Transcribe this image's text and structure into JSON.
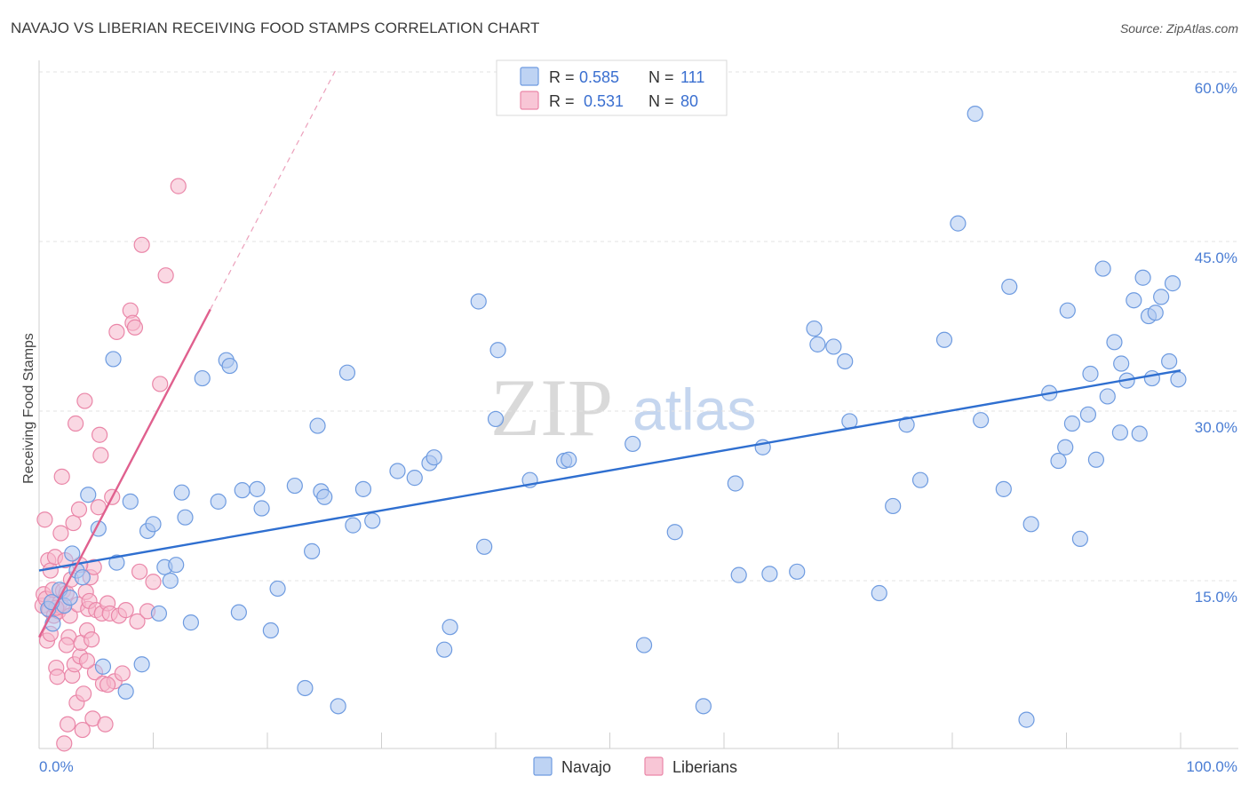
{
  "title": "NAVAJO VS LIBERIAN RECEIVING FOOD STAMPS CORRELATION CHART",
  "source": "Source: ZipAtlas.com",
  "watermark": {
    "zip": "ZIP",
    "atlas": "atlas"
  },
  "colors": {
    "navajo_fill": "#aec8f0",
    "navajo_stroke": "#6e9be0",
    "navajo_line": "#2f6fd0",
    "liberian_fill": "#f6b8cc",
    "liberian_stroke": "#ea86a8",
    "liberian_line": "#e0608e",
    "grid": "#e3e3e3",
    "tick_text": "#4a7dd4"
  },
  "legend": {
    "rows": [
      {
        "r_label": "R =",
        "r_value": "0.585",
        "n_label": "N =",
        "n_value": "111"
      },
      {
        "r_label": "R =",
        "r_value": "0.531",
        "n_label": "N =",
        "n_value": "80"
      }
    ]
  },
  "bottom_legend": [
    "Navajo",
    "Liberians"
  ],
  "chart_data": {
    "type": "scatter",
    "title": "NAVAJO VS LIBERIAN RECEIVING FOOD STAMPS CORRELATION CHART",
    "xlabel": "",
    "ylabel": "Receiving Food Stamps",
    "xlim": [
      0,
      100
    ],
    "ylim": [
      0,
      62
    ],
    "x_tick_labels": [
      {
        "value": 0,
        "label": "0.0%"
      },
      {
        "value": 100,
        "label": "100.0%"
      }
    ],
    "x_minor_ticks": [
      10,
      20,
      30,
      40,
      50,
      60,
      70,
      80,
      90,
      100
    ],
    "y_ticks": [
      {
        "value": 15,
        "label": "15.0%"
      },
      {
        "value": 30,
        "label": "30.0%"
      },
      {
        "value": 45,
        "label": "45.0%"
      },
      {
        "value": 60,
        "label": "60.0%"
      }
    ],
    "series": [
      {
        "name": "Navajo",
        "r": 0.585,
        "n": 111,
        "trend": {
          "x": [
            0,
            100
          ],
          "y": [
            15.9,
            33.6
          ],
          "dashed_extension": false
        },
        "points": [
          [
            0.8,
            12.5
          ],
          [
            1.2,
            11.2
          ],
          [
            1.8,
            14.2
          ],
          [
            2.2,
            12.8
          ],
          [
            2.7,
            13.5
          ],
          [
            2.9,
            17.4
          ],
          [
            3.3,
            15.9
          ],
          [
            3.8,
            15.3
          ],
          [
            4.3,
            22.6
          ],
          [
            5.2,
            19.6
          ],
          [
            5.6,
            7.4
          ],
          [
            6.5,
            34.6
          ],
          [
            6.8,
            16.6
          ],
          [
            7.6,
            5.2
          ],
          [
            8.0,
            22.0
          ],
          [
            9.0,
            7.6
          ],
          [
            9.5,
            19.4
          ],
          [
            10.0,
            20.0
          ],
          [
            10.5,
            12.1
          ],
          [
            11.0,
            16.2
          ],
          [
            11.5,
            15.0
          ],
          [
            12.0,
            16.4
          ],
          [
            12.5,
            22.8
          ],
          [
            12.8,
            20.6
          ],
          [
            13.3,
            11.3
          ],
          [
            14.3,
            32.9
          ],
          [
            15.7,
            22.0
          ],
          [
            16.4,
            34.5
          ],
          [
            16.7,
            34.0
          ],
          [
            17.5,
            12.2
          ],
          [
            17.8,
            23.0
          ],
          [
            19.1,
            23.1
          ],
          [
            19.5,
            21.4
          ],
          [
            20.3,
            10.6
          ],
          [
            20.9,
            14.3
          ],
          [
            22.4,
            23.4
          ],
          [
            23.3,
            5.5
          ],
          [
            23.9,
            17.6
          ],
          [
            24.4,
            28.7
          ],
          [
            24.7,
            22.9
          ],
          [
            25.0,
            22.4
          ],
          [
            26.2,
            3.9
          ],
          [
            27.0,
            33.4
          ],
          [
            27.5,
            19.9
          ],
          [
            28.4,
            23.1
          ],
          [
            29.2,
            20.3
          ],
          [
            31.4,
            24.7
          ],
          [
            32.9,
            24.1
          ],
          [
            34.2,
            25.4
          ],
          [
            34.6,
            25.9
          ],
          [
            35.5,
            8.9
          ],
          [
            36.0,
            10.9
          ],
          [
            38.5,
            39.7
          ],
          [
            39.0,
            18.0
          ],
          [
            40.0,
            29.3
          ],
          [
            40.2,
            35.4
          ],
          [
            43.0,
            23.9
          ],
          [
            46.0,
            25.6
          ],
          [
            46.4,
            25.7
          ],
          [
            52.0,
            27.1
          ],
          [
            53.0,
            9.3
          ],
          [
            55.7,
            19.3
          ],
          [
            58.2,
            3.9
          ],
          [
            61.0,
            23.6
          ],
          [
            61.3,
            15.5
          ],
          [
            63.4,
            26.8
          ],
          [
            64.0,
            15.6
          ],
          [
            66.4,
            15.8
          ],
          [
            67.9,
            37.3
          ],
          [
            68.2,
            35.9
          ],
          [
            69.6,
            35.7
          ],
          [
            70.6,
            34.4
          ],
          [
            71.0,
            29.1
          ],
          [
            73.6,
            13.9
          ],
          [
            74.8,
            21.6
          ],
          [
            76.0,
            28.8
          ],
          [
            77.2,
            23.9
          ],
          [
            79.3,
            36.3
          ],
          [
            80.5,
            46.6
          ],
          [
            82.0,
            56.3
          ],
          [
            82.5,
            29.2
          ],
          [
            84.5,
            23.1
          ],
          [
            85.0,
            41.0
          ],
          [
            86.5,
            2.7
          ],
          [
            86.9,
            20.0
          ],
          [
            88.5,
            31.6
          ],
          [
            89.3,
            25.6
          ],
          [
            89.9,
            26.8
          ],
          [
            90.1,
            38.9
          ],
          [
            90.5,
            28.9
          ],
          [
            91.2,
            18.7
          ],
          [
            91.9,
            29.7
          ],
          [
            92.1,
            33.3
          ],
          [
            92.6,
            25.7
          ],
          [
            93.2,
            42.6
          ],
          [
            93.6,
            31.3
          ],
          [
            94.2,
            36.1
          ],
          [
            94.7,
            28.1
          ],
          [
            94.8,
            34.2
          ],
          [
            95.3,
            32.7
          ],
          [
            95.9,
            39.8
          ],
          [
            96.4,
            28.0
          ],
          [
            96.7,
            41.8
          ],
          [
            97.2,
            38.4
          ],
          [
            97.5,
            32.9
          ],
          [
            97.8,
            38.7
          ],
          [
            98.3,
            40.1
          ],
          [
            99.0,
            34.4
          ],
          [
            99.3,
            41.3
          ],
          [
            99.8,
            32.8
          ],
          [
            1.1,
            13.1
          ]
        ]
      },
      {
        "name": "Liberians",
        "r": 0.531,
        "n": 80,
        "trend": {
          "x": [
            0,
            15
          ],
          "y": [
            10.0,
            39.0
          ],
          "dashed_extension": true,
          "dashed_to": {
            "x": 26,
            "y": 60.2
          }
        },
        "points": [
          [
            0.3,
            12.8
          ],
          [
            0.4,
            13.8
          ],
          [
            0.5,
            20.4
          ],
          [
            0.6,
            13.4
          ],
          [
            0.7,
            9.7
          ],
          [
            0.8,
            16.8
          ],
          [
            0.9,
            12.4
          ],
          [
            1.0,
            15.9
          ],
          [
            1.1,
            13.1
          ],
          [
            1.2,
            14.2
          ],
          [
            1.3,
            11.9
          ],
          [
            1.4,
            17.1
          ],
          [
            1.5,
            7.3
          ],
          [
            1.6,
            6.5
          ],
          [
            1.7,
            12.3
          ],
          [
            1.8,
            13.0
          ],
          [
            1.9,
            19.2
          ],
          [
            2.0,
            24.2
          ],
          [
            2.0,
            12.7
          ],
          [
            2.1,
            14.1
          ],
          [
            2.2,
            0.6
          ],
          [
            2.3,
            16.8
          ],
          [
            2.4,
            13.9
          ],
          [
            2.5,
            2.3
          ],
          [
            2.6,
            10.0
          ],
          [
            2.7,
            11.9
          ],
          [
            2.8,
            15.1
          ],
          [
            2.9,
            6.6
          ],
          [
            3.0,
            20.1
          ],
          [
            3.1,
            7.6
          ],
          [
            3.2,
            28.9
          ],
          [
            3.3,
            4.2
          ],
          [
            3.4,
            12.9
          ],
          [
            3.5,
            21.3
          ],
          [
            3.6,
            8.3
          ],
          [
            3.7,
            9.5
          ],
          [
            3.8,
            1.8
          ],
          [
            3.9,
            5.0
          ],
          [
            4.0,
            30.9
          ],
          [
            4.1,
            14.0
          ],
          [
            4.2,
            10.6
          ],
          [
            4.3,
            12.5
          ],
          [
            4.4,
            13.2
          ],
          [
            4.5,
            15.3
          ],
          [
            4.6,
            9.8
          ],
          [
            4.7,
            2.8
          ],
          [
            4.8,
            16.2
          ],
          [
            4.9,
            6.9
          ],
          [
            5.0,
            12.4
          ],
          [
            5.2,
            21.5
          ],
          [
            5.3,
            27.9
          ],
          [
            5.4,
            26.1
          ],
          [
            5.5,
            12.1
          ],
          [
            5.6,
            5.9
          ],
          [
            5.8,
            2.3
          ],
          [
            6.0,
            13.0
          ],
          [
            6.2,
            12.1
          ],
          [
            6.4,
            22.4
          ],
          [
            6.6,
            6.1
          ],
          [
            6.8,
            37.0
          ],
          [
            7.0,
            11.9
          ],
          [
            7.3,
            6.8
          ],
          [
            7.6,
            12.4
          ],
          [
            8.0,
            38.9
          ],
          [
            8.2,
            37.8
          ],
          [
            8.4,
            37.4
          ],
          [
            8.6,
            11.4
          ],
          [
            8.8,
            15.8
          ],
          [
            9.0,
            44.7
          ],
          [
            9.5,
            12.3
          ],
          [
            10.0,
            14.9
          ],
          [
            10.6,
            32.4
          ],
          [
            11.1,
            42.0
          ],
          [
            12.2,
            49.9
          ],
          [
            1.0,
            10.3
          ],
          [
            1.5,
            12.6
          ],
          [
            2.4,
            9.3
          ],
          [
            3.6,
            16.4
          ],
          [
            4.2,
            7.9
          ],
          [
            6.0,
            5.8
          ]
        ]
      }
    ]
  }
}
